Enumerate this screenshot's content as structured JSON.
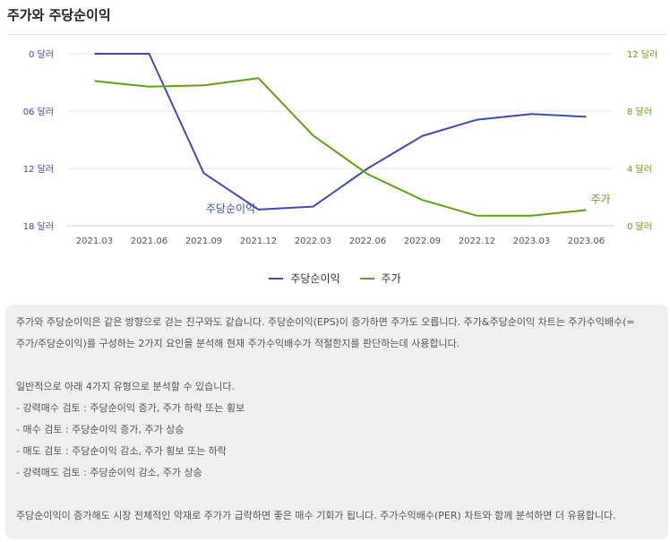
{
  "header": {
    "title": "주가와 주당순이익"
  },
  "chart_data": {
    "type": "line",
    "title": "주가와 주당순이익",
    "categories": [
      "2021.03",
      "2021.06",
      "2021.09",
      "2021.12",
      "2022.03",
      "2022.06",
      "2022.09",
      "2022.12",
      "2023.03",
      "2023.06"
    ],
    "left_axis": {
      "ticks": [
        "0 달러",
        "06 달러",
        "12 달러",
        "18 달러"
      ],
      "range": [
        0,
        18
      ],
      "inverted": true
    },
    "right_axis": {
      "ticks": [
        "12 달러",
        "8 달러",
        "4 달러",
        "0 달러"
      ],
      "range": [
        0,
        12
      ]
    },
    "series": [
      {
        "name": "주당순이익",
        "axis": "left",
        "color": "#3c4bbf",
        "values": [
          0,
          0,
          12.5,
          16.3,
          16.0,
          12.0,
          8.6,
          6.9,
          6.3,
          6.6
        ],
        "label": "주당순이익"
      },
      {
        "name": "주가",
        "axis": "right",
        "color": "#5aa50f",
        "values": [
          10.1,
          9.7,
          9.8,
          10.3,
          6.3,
          3.6,
          1.8,
          0.7,
          0.7,
          1.1
        ],
        "label": "주가"
      }
    ],
    "grid": true
  },
  "legend": [
    {
      "label": "주당순이익",
      "color": "#3c4bbf"
    },
    {
      "label": "주가",
      "color": "#5aa50f"
    }
  ],
  "info": {
    "p1": "주가와 주당순이익은 같은 방향으로 걷는 친구와도 같습니다. 주당순이익(EPS)이 증가하면 주가도 오릅니다. 주가&주당순이익 차트는 주가수익배수(=",
    "p2": "주가/주당순이익)를 구성하는 2가지 요인을 분석해 현재 주가수익배수가 적절한지를 판단하는데 사용합니다.",
    "p3": "일반적으로 아래 4가지 유형으로 분석할 수 있습니다.",
    "p4": "- 강력매수 검토 : 주당순이익 증가, 주가 하락 또는 횡보",
    "p5": "- 매수 검토 : 주당순이익 증가, 주가 상승",
    "p6": "- 매도 검토 : 주당순이익 감소, 주가 횡보 또는 하락",
    "p7": "- 강력매도 검토 : 주당순이익 감소, 주가 상승",
    "p8": "주당순이익이 증가해도 시장 전체적인 악재로 주가가 급락하면 좋은 매수 기회가 됩니다. 주가수익배수(PER) 차트와 함께 분석하면 더 유용합니다."
  }
}
